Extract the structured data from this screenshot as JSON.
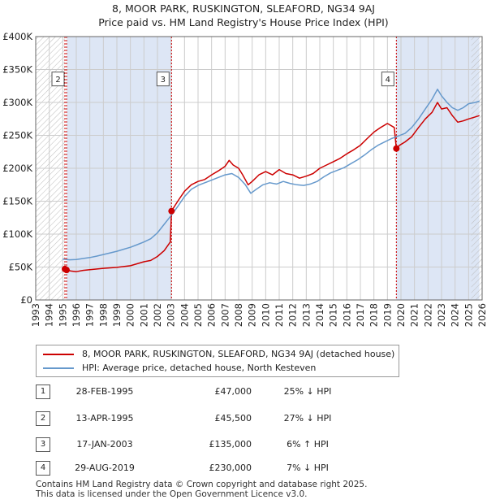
{
  "title_line1": "8, MOOR PARK, RUSKINGTON, SLEAFORD, NG34 9AJ",
  "title_line2": "Price paid vs. HM Land Registry's House Price Index (HPI)",
  "colors": {
    "property": "#cc0000",
    "hpi": "#6699cc",
    "shade": "#dde6f5",
    "marker_line": "#cc0000"
  },
  "chart_data": {
    "type": "line",
    "xlim": [
      1993,
      2026
    ],
    "ylim": [
      0,
      400000
    ],
    "y_ticks": [
      0,
      50000,
      100000,
      150000,
      200000,
      250000,
      300000,
      350000,
      400000
    ],
    "y_tick_labels": [
      "£0",
      "£50K",
      "£100K",
      "£150K",
      "£200K",
      "£250K",
      "£300K",
      "£350K",
      "£400K"
    ],
    "x_ticks": [
      1993,
      1994,
      1995,
      1996,
      1997,
      1998,
      1999,
      2000,
      2001,
      2002,
      2003,
      2004,
      2005,
      2006,
      2007,
      2008,
      2009,
      2010,
      2011,
      2012,
      2013,
      2014,
      2015,
      2016,
      2017,
      2018,
      2019,
      2020,
      2021,
      2022,
      2023,
      2024,
      2025,
      2026
    ],
    "shaded_ranges": [
      [
        1995.3,
        2003.04
      ],
      [
        2019.66,
        2025.8
      ]
    ],
    "hatched_ranges": [
      [
        1993,
        1995.16
      ],
      [
        2025.2,
        2026
      ]
    ],
    "series": [
      {
        "name": "8, MOOR PARK, RUSKINGTON, SLEAFORD, NG34 9AJ (detached house)",
        "color": "#cc0000",
        "points": [
          [
            1995.16,
            47000
          ],
          [
            1995.28,
            45500
          ],
          [
            1995.6,
            44000
          ],
          [
            1996,
            43000
          ],
          [
            1996.5,
            45000
          ],
          [
            1997,
            46000
          ],
          [
            1998,
            48000
          ],
          [
            1999,
            49500
          ],
          [
            2000,
            52000
          ],
          [
            2001,
            58000
          ],
          [
            2001.5,
            60000
          ],
          [
            2002,
            66000
          ],
          [
            2002.5,
            75000
          ],
          [
            2002.95,
            88000
          ],
          [
            2003.04,
            135000
          ],
          [
            2003.5,
            150000
          ],
          [
            2004,
            165000
          ],
          [
            2004.5,
            175000
          ],
          [
            2005,
            180000
          ],
          [
            2005.5,
            183000
          ],
          [
            2006,
            190000
          ],
          [
            2006.5,
            196000
          ],
          [
            2007,
            203000
          ],
          [
            2007.3,
            212000
          ],
          [
            2007.6,
            205000
          ],
          [
            2008,
            200000
          ],
          [
            2008.3,
            190000
          ],
          [
            2008.7,
            175000
          ],
          [
            2009,
            180000
          ],
          [
            2009.5,
            190000
          ],
          [
            2010,
            195000
          ],
          [
            2010.5,
            190000
          ],
          [
            2011,
            198000
          ],
          [
            2011.5,
            192000
          ],
          [
            2012,
            190000
          ],
          [
            2012.5,
            185000
          ],
          [
            2013,
            188000
          ],
          [
            2013.5,
            192000
          ],
          [
            2014,
            200000
          ],
          [
            2014.5,
            205000
          ],
          [
            2015,
            210000
          ],
          [
            2015.5,
            215000
          ],
          [
            2016,
            222000
          ],
          [
            2016.5,
            228000
          ],
          [
            2017,
            235000
          ],
          [
            2017.5,
            245000
          ],
          [
            2018,
            255000
          ],
          [
            2018.5,
            262000
          ],
          [
            2019,
            268000
          ],
          [
            2019.5,
            262000
          ],
          [
            2019.66,
            230000
          ],
          [
            2019.9,
            235000
          ],
          [
            2020.3,
            240000
          ],
          [
            2020.8,
            248000
          ],
          [
            2021.3,
            262000
          ],
          [
            2021.8,
            275000
          ],
          [
            2022.3,
            285000
          ],
          [
            2022.7,
            300000
          ],
          [
            2023,
            290000
          ],
          [
            2023.4,
            292000
          ],
          [
            2023.8,
            280000
          ],
          [
            2024.2,
            270000
          ],
          [
            2024.6,
            272000
          ],
          [
            2025,
            275000
          ],
          [
            2025.5,
            278000
          ],
          [
            2025.8,
            280000
          ]
        ]
      },
      {
        "name": "HPI: Average price, detached house, North Kesteven",
        "color": "#6699cc",
        "points": [
          [
            1995,
            62000
          ],
          [
            1995.5,
            61000
          ],
          [
            1996,
            61500
          ],
          [
            1996.5,
            63000
          ],
          [
            1997,
            64500
          ],
          [
            1997.5,
            66500
          ],
          [
            1998,
            69000
          ],
          [
            1998.5,
            71500
          ],
          [
            1999,
            74000
          ],
          [
            1999.5,
            77000
          ],
          [
            2000,
            80000
          ],
          [
            2000.5,
            84000
          ],
          [
            2001,
            88000
          ],
          [
            2001.5,
            93000
          ],
          [
            2002,
            102000
          ],
          [
            2002.5,
            115000
          ],
          [
            2003,
            128000
          ],
          [
            2003.5,
            142000
          ],
          [
            2004,
            157000
          ],
          [
            2004.5,
            168000
          ],
          [
            2005,
            174000
          ],
          [
            2005.5,
            178000
          ],
          [
            2006,
            182000
          ],
          [
            2006.5,
            186000
          ],
          [
            2007,
            190000
          ],
          [
            2007.5,
            192000
          ],
          [
            2008,
            186000
          ],
          [
            2008.5,
            175000
          ],
          [
            2008.9,
            162000
          ],
          [
            2009.3,
            168000
          ],
          [
            2009.8,
            175000
          ],
          [
            2010.3,
            178000
          ],
          [
            2010.8,
            176000
          ],
          [
            2011.3,
            180000
          ],
          [
            2011.8,
            177000
          ],
          [
            2012.3,
            175000
          ],
          [
            2012.8,
            174000
          ],
          [
            2013.3,
            176000
          ],
          [
            2013.8,
            180000
          ],
          [
            2014.3,
            187000
          ],
          [
            2014.8,
            193000
          ],
          [
            2015.3,
            197000
          ],
          [
            2015.8,
            201000
          ],
          [
            2016.3,
            207000
          ],
          [
            2016.8,
            213000
          ],
          [
            2017.3,
            220000
          ],
          [
            2017.8,
            228000
          ],
          [
            2018.3,
            235000
          ],
          [
            2018.8,
            240000
          ],
          [
            2019.3,
            245000
          ],
          [
            2019.8,
            249000
          ],
          [
            2020.3,
            253000
          ],
          [
            2020.8,
            262000
          ],
          [
            2021.3,
            275000
          ],
          [
            2021.8,
            290000
          ],
          [
            2022.3,
            305000
          ],
          [
            2022.7,
            320000
          ],
          [
            2023,
            310000
          ],
          [
            2023.4,
            300000
          ],
          [
            2023.8,
            292000
          ],
          [
            2024.2,
            288000
          ],
          [
            2024.6,
            292000
          ],
          [
            2025,
            298000
          ],
          [
            2025.5,
            300000
          ],
          [
            2025.8,
            302000
          ]
        ]
      }
    ],
    "sales": [
      {
        "label": "1",
        "x": 1995.16,
        "y": 47000,
        "show_box": false
      },
      {
        "label": "2",
        "x": 1995.28,
        "y": 45500,
        "show_box": true
      },
      {
        "label": "3",
        "x": 2003.04,
        "y": 135000,
        "show_box": true
      },
      {
        "label": "4",
        "x": 2019.66,
        "y": 230000,
        "show_box": true
      }
    ],
    "box_y": 335000
  },
  "legend": {
    "property_label": "8, MOOR PARK, RUSKINGTON, SLEAFORD, NG34 9AJ (detached house)",
    "hpi_label": "HPI: Average price, detached house, North Kesteven"
  },
  "transactions": [
    {
      "num": "1",
      "date": "28-FEB-1995",
      "price": "£47,000",
      "hpi": "25% ↓ HPI"
    },
    {
      "num": "2",
      "date": "13-APR-1995",
      "price": "£45,500",
      "hpi": "27% ↓ HPI"
    },
    {
      "num": "3",
      "date": "17-JAN-2003",
      "price": "£135,000",
      "hpi": "6% ↑ HPI"
    },
    {
      "num": "4",
      "date": "29-AUG-2019",
      "price": "£230,000",
      "hpi": "7% ↓ HPI"
    }
  ],
  "footer_line1": "Contains HM Land Registry data © Crown copyright and database right 2025.",
  "footer_line2": "This data is licensed under the Open Government Licence v3.0."
}
